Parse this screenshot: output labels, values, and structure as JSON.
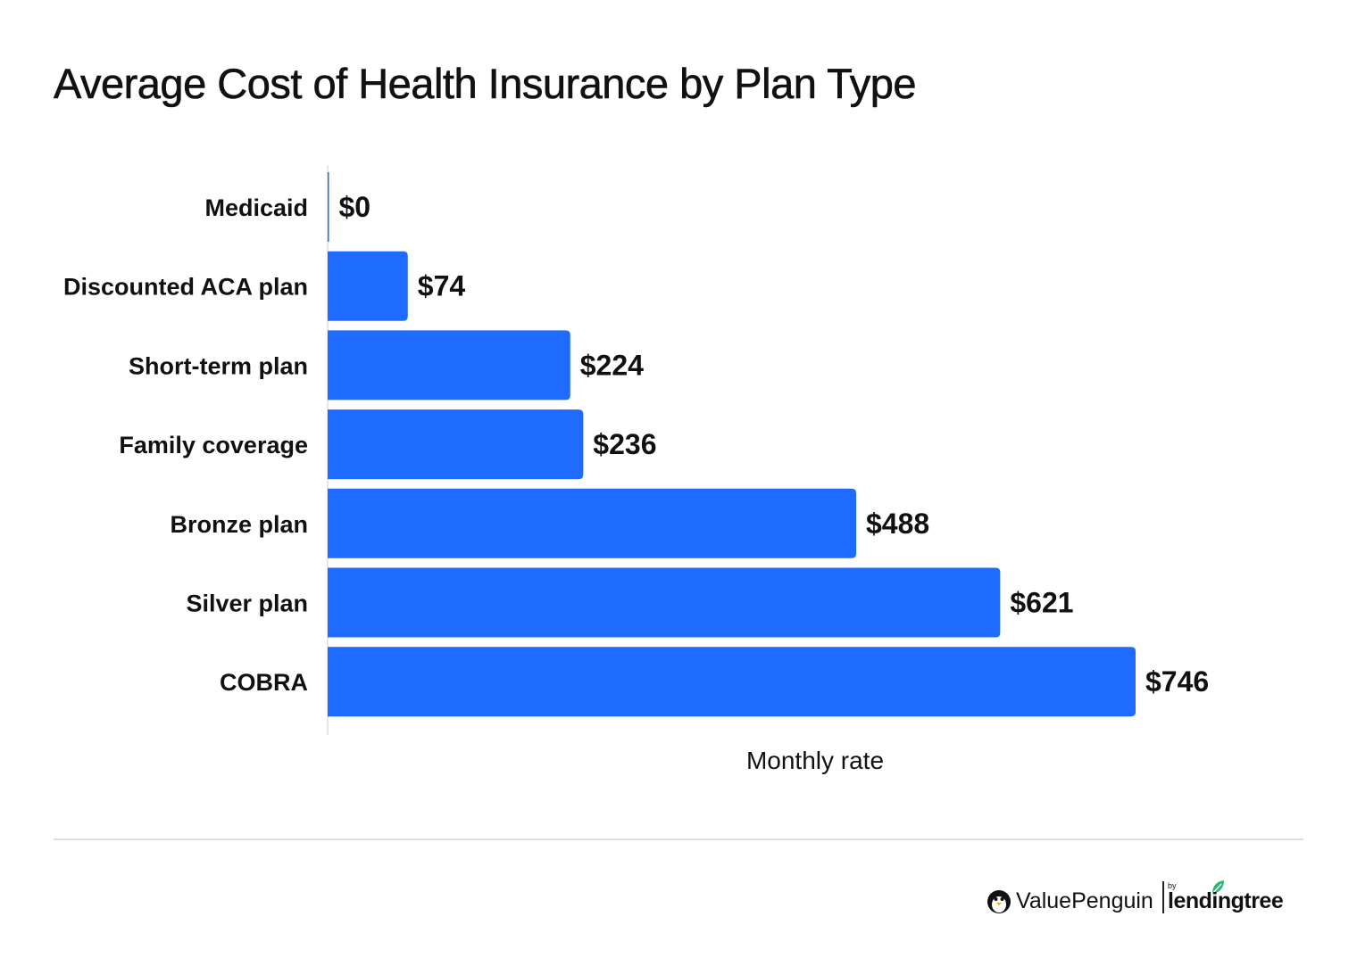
{
  "chart_data": {
    "type": "bar",
    "orientation": "horizontal",
    "title": "Average Cost of Health Insurance by Plan Type",
    "xlabel": "Monthly rate",
    "ylabel": "",
    "categories": [
      "Medicaid",
      "Discounted ACA plan",
      "Short-term plan",
      "Family coverage",
      "Bronze plan",
      "Silver plan",
      "COBRA"
    ],
    "values": [
      0,
      74,
      224,
      236,
      488,
      621,
      746
    ],
    "value_labels": [
      "$0",
      "$74",
      "$224",
      "$236",
      "$488",
      "$621",
      "$746"
    ],
    "xlim": [
      0,
      746
    ],
    "grid": false,
    "bar_color": "#1f6bff"
  },
  "footer": {
    "brand": "ValuePenguin",
    "by": "by",
    "partner": "lendingtree",
    "penguin_icon": "penguin-icon",
    "leaf_icon": "leaf-icon",
    "partner_color": "#2cb574"
  }
}
